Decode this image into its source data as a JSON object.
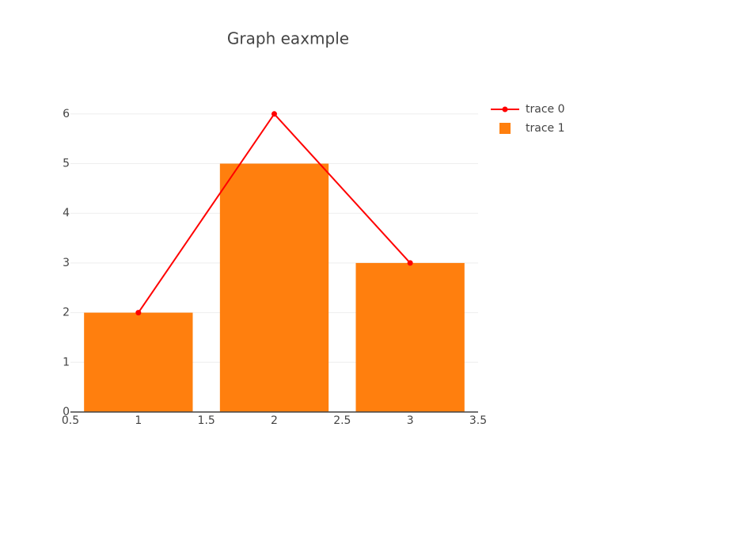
{
  "chart_data": {
    "type": "bar",
    "title": "Graph eaxmple",
    "x": [
      1,
      2,
      3
    ],
    "series": [
      {
        "name": "trace 0",
        "type": "line",
        "color": "#ff0000",
        "values": [
          2,
          6,
          3
        ]
      },
      {
        "name": "trace 1",
        "type": "bar",
        "color": "#ff7f0e",
        "values": [
          2,
          5,
          3
        ]
      }
    ],
    "xlim": [
      0.5,
      3.5
    ],
    "xticks": [
      0.5,
      1,
      1.5,
      2,
      2.5,
      3,
      3.5
    ],
    "ylim": [
      0,
      6.3
    ],
    "yticks": [
      0,
      1,
      2,
      3,
      4,
      5,
      6
    ],
    "grid": true,
    "legend": "right"
  }
}
